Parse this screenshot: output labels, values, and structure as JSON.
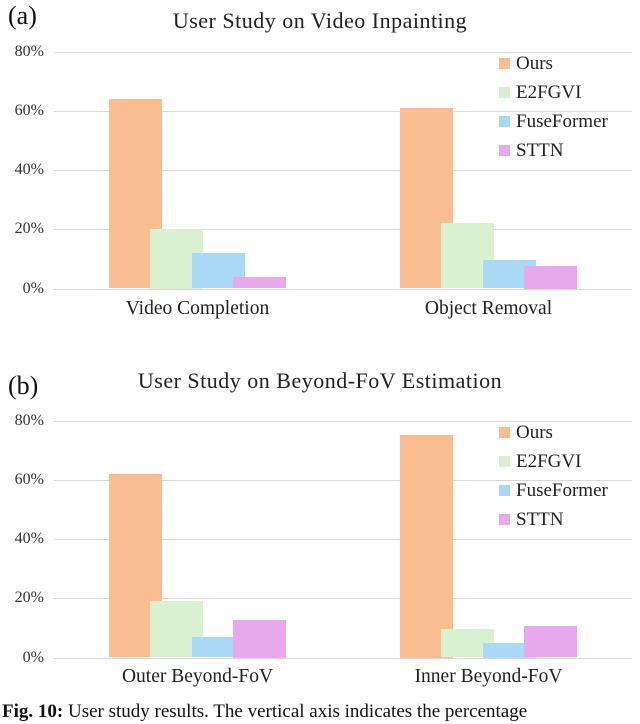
{
  "figure": {
    "caption": {
      "prefix": "Fig. 10:",
      "text": " User study results. The vertical axis indicates the percentage"
    }
  },
  "colors": {
    "series": [
      "#FABD92",
      "#D9F1D1",
      "#A9D9F5",
      "#E8A9EC"
    ],
    "gridline": "#D9D9D9",
    "text": "#1C1C1C"
  },
  "chart_data": [
    {
      "type": "bar",
      "panel_label": "(a)",
      "title": "User Study on Video Inpainting",
      "categories": [
        "Video Completion",
        "Object Removal"
      ],
      "series": [
        {
          "name": "Ours",
          "values": [
            64,
            61
          ]
        },
        {
          "name": "E2FGVI",
          "values": [
            20,
            22
          ]
        },
        {
          "name": "FuseFormer",
          "values": [
            12,
            9.5
          ]
        },
        {
          "name": "STTN",
          "values": [
            4,
            7.5
          ]
        }
      ],
      "xlabel": "",
      "ylabel": "",
      "ylim": [
        0,
        80
      ],
      "y_tick_labels": [
        "0%",
        "20%",
        "40%",
        "60%",
        "80%"
      ],
      "grid": true,
      "legend_position": "top-right",
      "legend": [
        "Ours",
        "E2FGVI",
        "FuseFormer",
        "STTN"
      ]
    },
    {
      "type": "bar",
      "panel_label": "(b)",
      "title": "User Study on Beyond-FoV Estimation",
      "categories": [
        "Outer Beyond-FoV",
        "Inner Beyond-FoV"
      ],
      "series": [
        {
          "name": "Ours",
          "values": [
            62,
            75
          ]
        },
        {
          "name": "E2FGVI",
          "values": [
            19,
            9.5
          ]
        },
        {
          "name": "FuseFormer",
          "values": [
            7,
            5
          ]
        },
        {
          "name": "STTN",
          "values": [
            12.5,
            10.5
          ]
        }
      ],
      "xlabel": "",
      "ylabel": "",
      "ylim": [
        0,
        80
      ],
      "y_tick_labels": [
        "0%",
        "20%",
        "40%",
        "60%",
        "80%"
      ],
      "grid": true,
      "legend_position": "top-right",
      "legend": [
        "Ours",
        "E2FGVI",
        "FuseFormer",
        "STTN"
      ]
    }
  ]
}
